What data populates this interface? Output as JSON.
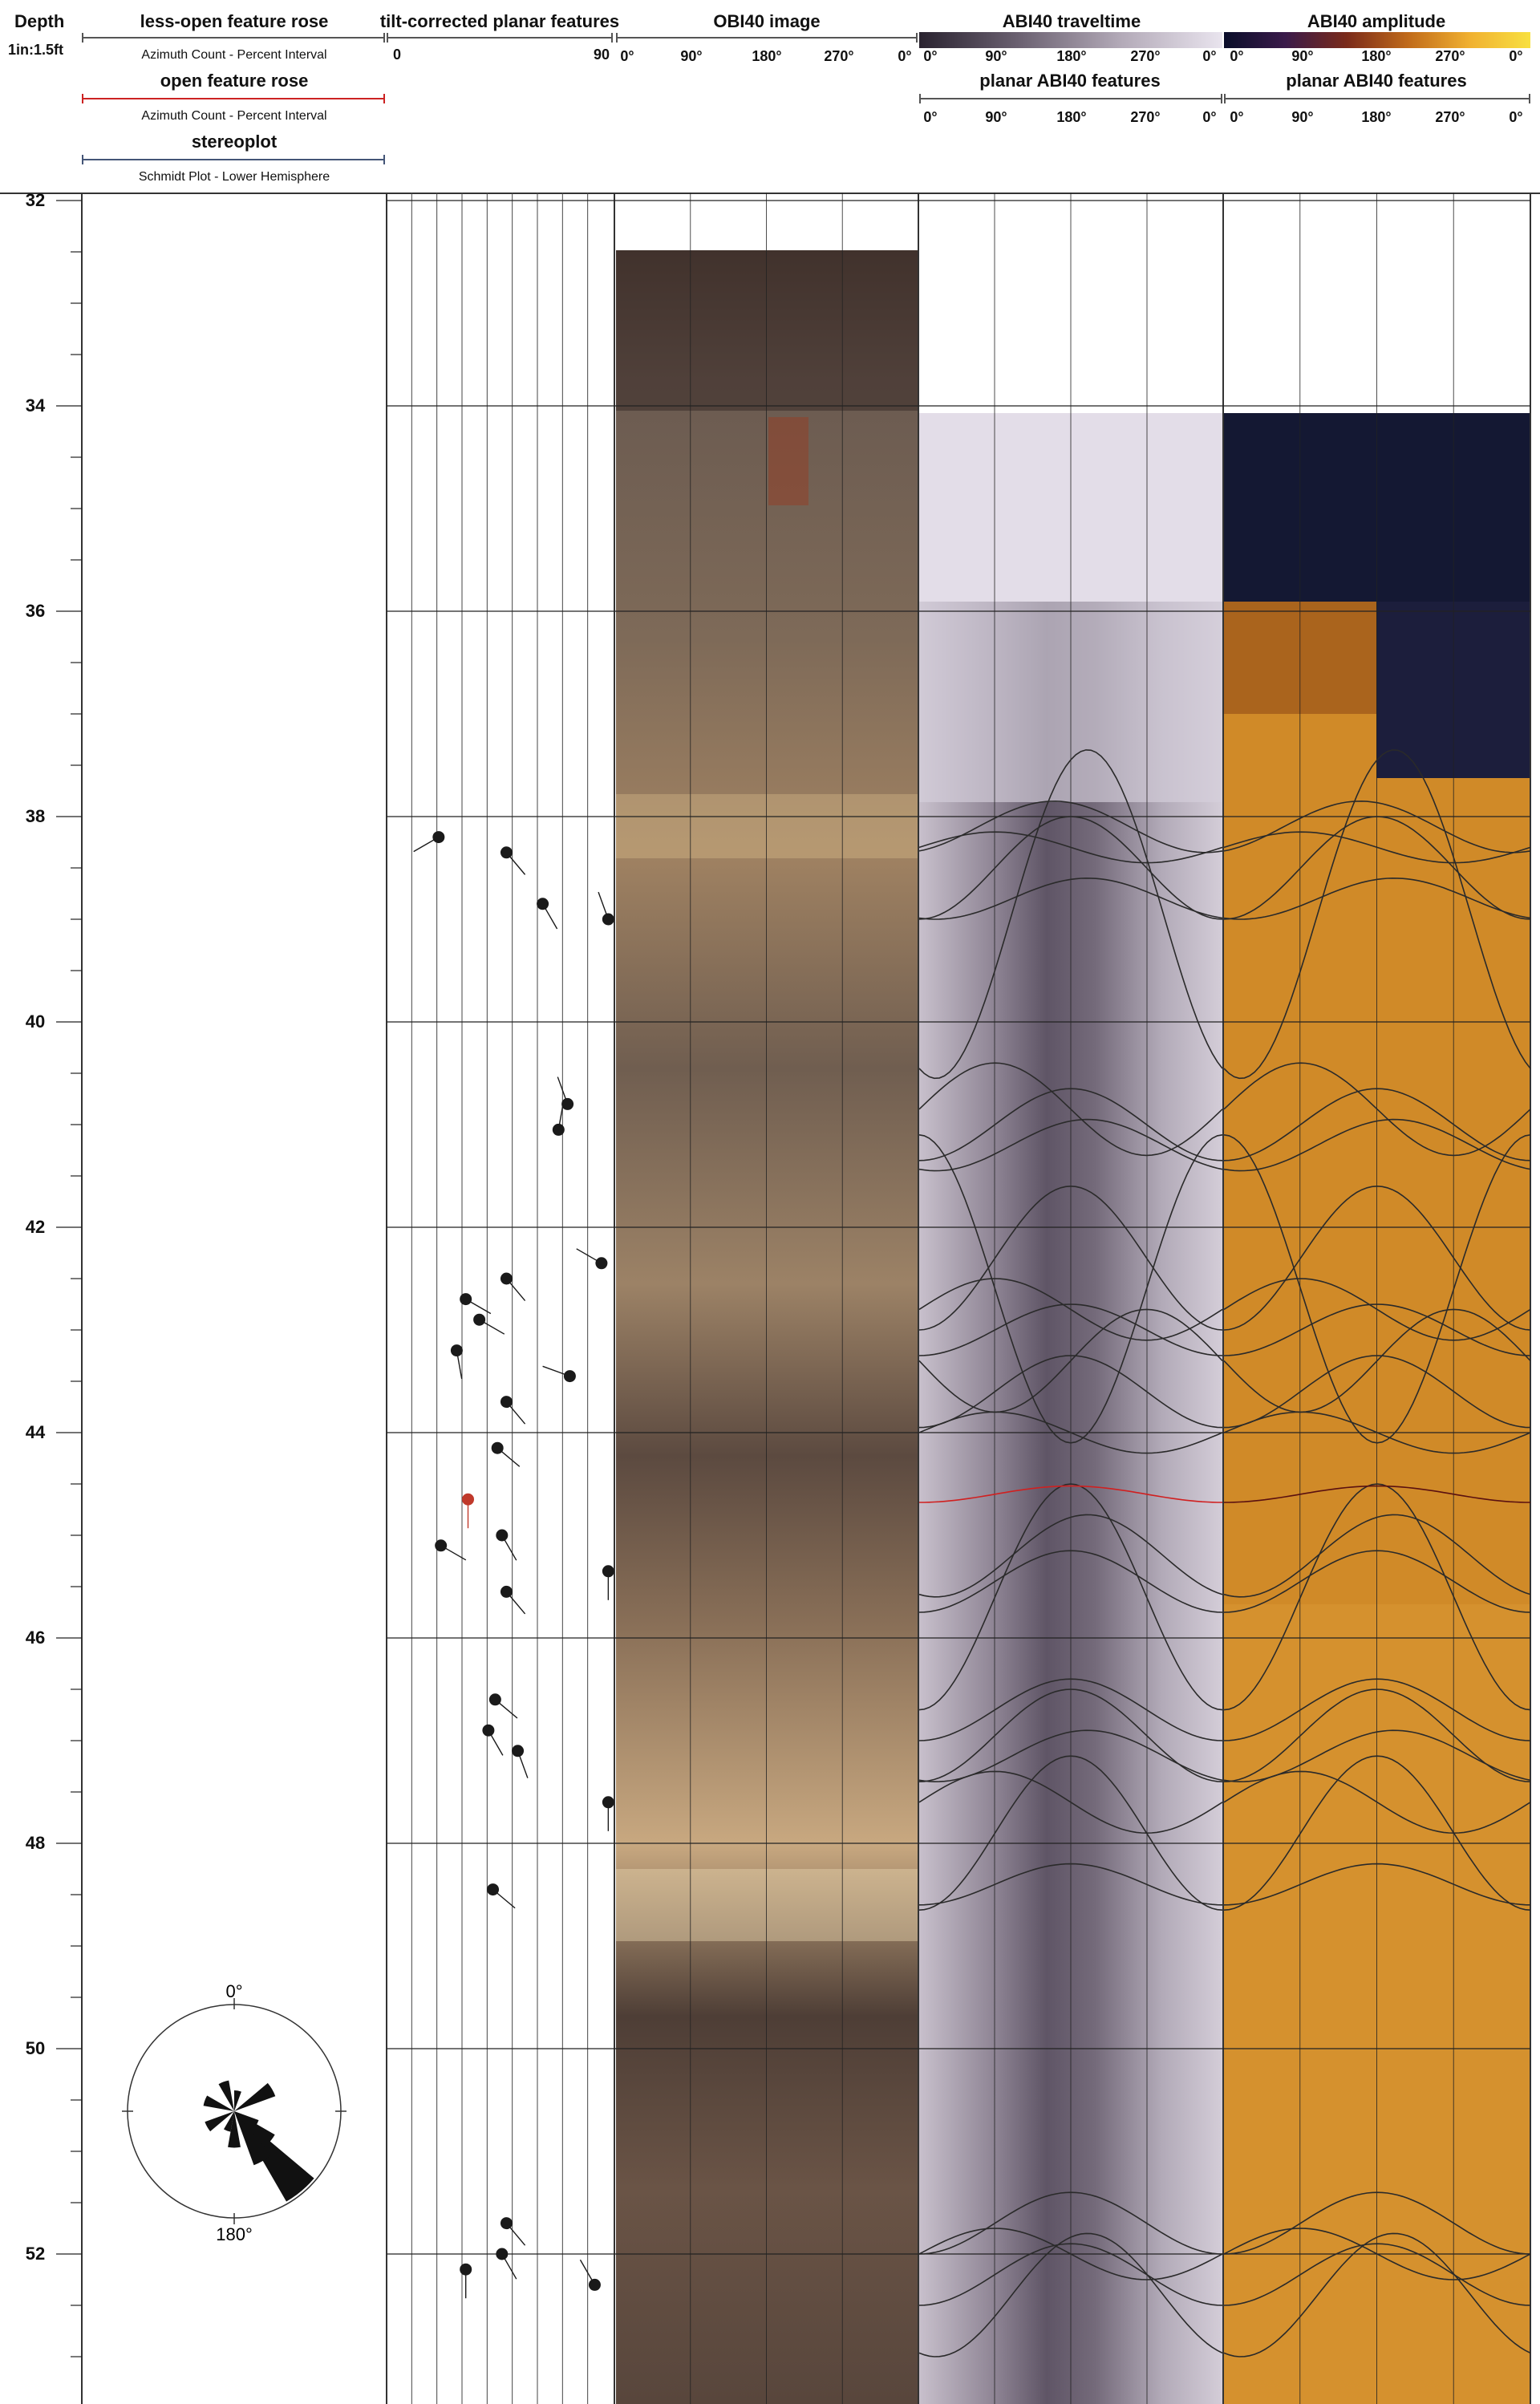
{
  "header": {
    "depth_title": "Depth",
    "depth_scale": "1in:1.5ft",
    "rose1_title": "less-open feature rose",
    "rose1_sub": "Azimuth Count - Percent Interval",
    "rose2_title": "open feature rose",
    "rose2_sub": "Azimuth Count - Percent Interval",
    "stereo_title": "stereoplot",
    "stereo_sub": "Schmidt Plot - Lower Hemisphere",
    "planar_title": "tilt-corrected planar features",
    "planar_min": "0",
    "planar_max": "90",
    "obi_title": "OBI40 image",
    "tt_title": "ABI40 traveltime",
    "amp_title": "ABI40 amplitude",
    "tt_planar_title": "planar ABI40 features",
    "amp_planar_title": "planar ABI40 features",
    "azimuth_ticks": [
      "0°",
      "90°",
      "180°",
      "270°",
      "0°"
    ]
  },
  "depths": [
    "32",
    "34",
    "36",
    "38",
    "40",
    "42",
    "44",
    "46",
    "48",
    "50",
    "52"
  ],
  "stereonet": {
    "north_label": "0°",
    "south_label": "180°"
  },
  "colors": {
    "grid": "#333333",
    "rose1_bar": "#555555",
    "rose2_bar": "#cc2222",
    "stereo_bar": "#445577",
    "tadpole": "#1a1a1a",
    "open_tadpole": "#c0392b",
    "open_sinusoid": "#d02020"
  },
  "planar_features": [
    {
      "depth": 38.2,
      "dip": 23,
      "azimuth": 240,
      "open": false
    },
    {
      "depth": 38.35,
      "dip": 53,
      "azimuth": 140,
      "open": false
    },
    {
      "depth": 38.85,
      "dip": 69,
      "azimuth": 150,
      "open": false
    },
    {
      "depth": 39.0,
      "dip": 98,
      "azimuth": 340,
      "open": false
    },
    {
      "depth": 40.8,
      "dip": 80,
      "azimuth": 340,
      "open": false
    },
    {
      "depth": 41.05,
      "dip": 76,
      "azimuth": 10,
      "open": false
    },
    {
      "depth": 42.35,
      "dip": 95,
      "azimuth": 300,
      "open": false
    },
    {
      "depth": 42.5,
      "dip": 53,
      "azimuth": 140,
      "open": false
    },
    {
      "depth": 42.7,
      "dip": 35,
      "azimuth": 120,
      "open": false
    },
    {
      "depth": 42.9,
      "dip": 41,
      "azimuth": 120,
      "open": false
    },
    {
      "depth": 43.2,
      "dip": 31,
      "azimuth": 170,
      "open": false
    },
    {
      "depth": 43.45,
      "dip": 81,
      "azimuth": 290,
      "open": false
    },
    {
      "depth": 43.7,
      "dip": 53,
      "azimuth": 140,
      "open": false
    },
    {
      "depth": 44.15,
      "dip": 49,
      "azimuth": 130,
      "open": false
    },
    {
      "depth": 44.65,
      "dip": 36,
      "azimuth": 180,
      "open": true
    },
    {
      "depth": 45.0,
      "dip": 51,
      "azimuth": 150,
      "open": false
    },
    {
      "depth": 45.1,
      "dip": 24,
      "azimuth": 120,
      "open": false
    },
    {
      "depth": 45.35,
      "dip": 98,
      "azimuth": 180,
      "open": false
    },
    {
      "depth": 45.55,
      "dip": 53,
      "azimuth": 140,
      "open": false
    },
    {
      "depth": 46.6,
      "dip": 48,
      "azimuth": 130,
      "open": false
    },
    {
      "depth": 46.9,
      "dip": 45,
      "azimuth": 150,
      "open": false
    },
    {
      "depth": 47.1,
      "dip": 58,
      "azimuth": 160,
      "open": false
    },
    {
      "depth": 47.6,
      "dip": 98,
      "azimuth": 180,
      "open": false
    },
    {
      "depth": 48.45,
      "dip": 47,
      "azimuth": 130,
      "open": false
    },
    {
      "depth": 51.7,
      "dip": 53,
      "azimuth": 140,
      "open": false
    },
    {
      "depth": 52.0,
      "dip": 51,
      "azimuth": 150,
      "open": false
    },
    {
      "depth": 52.15,
      "dip": 35,
      "azimuth": 180,
      "open": false
    },
    {
      "depth": 52.3,
      "dip": 92,
      "azimuth": 330,
      "open": false
    }
  ],
  "abi_sinusoids": [
    {
      "depth": 38.1,
      "amplitude": 0.25,
      "phase": 160
    },
    {
      "depth": 38.3,
      "amplitude": 0.15,
      "phase": 90
    },
    {
      "depth": 38.5,
      "amplitude": 0.5,
      "phase": 180
    },
    {
      "depth": 38.8,
      "amplitude": 0.2,
      "phase": 200
    },
    {
      "depth": 38.95,
      "amplitude": 1.6,
      "phase": 200
    },
    {
      "depth": 40.85,
      "amplitude": 0.45,
      "phase": 90
    },
    {
      "depth": 41.0,
      "amplitude": 0.35,
      "phase": 180
    },
    {
      "depth": 41.2,
      "amplitude": 0.25,
      "phase": 200
    },
    {
      "depth": 42.3,
      "amplitude": 0.7,
      "phase": 180
    },
    {
      "depth": 42.6,
      "amplitude": 1.5,
      "phase": 0
    },
    {
      "depth": 42.8,
      "amplitude": 0.3,
      "phase": 90
    },
    {
      "depth": 43.0,
      "amplitude": 0.25,
      "phase": 180
    },
    {
      "depth": 43.3,
      "amplitude": 0.5,
      "phase": 270
    },
    {
      "depth": 43.6,
      "amplitude": 0.35,
      "phase": 180
    },
    {
      "depth": 44.0,
      "amplitude": 0.2,
      "phase": 90
    },
    {
      "depth": 45.2,
      "amplitude": 0.4,
      "phase": 200
    },
    {
      "depth": 45.45,
      "amplitude": 0.3,
      "phase": 180
    },
    {
      "depth": 45.6,
      "amplitude": 1.1,
      "phase": 180
    },
    {
      "depth": 46.7,
      "amplitude": 0.3,
      "phase": 180
    },
    {
      "depth": 46.95,
      "amplitude": 0.45,
      "phase": 180
    },
    {
      "depth": 47.15,
      "amplitude": 0.25,
      "phase": 200
    },
    {
      "depth": 47.6,
      "amplitude": 0.3,
      "phase": 90
    },
    {
      "depth": 47.9,
      "amplitude": 0.75,
      "phase": 180
    },
    {
      "depth": 48.4,
      "amplitude": 0.2,
      "phase": 180
    },
    {
      "depth": 51.7,
      "amplitude": 0.3,
      "phase": 180
    },
    {
      "depth": 52.0,
      "amplitude": 0.25,
      "phase": 90
    },
    {
      "depth": 52.2,
      "amplitude": 0.3,
      "phase": 180
    },
    {
      "depth": 52.4,
      "amplitude": 0.6,
      "phase": 200
    }
  ],
  "open_sinusoid": {
    "depth": 44.6,
    "amplitude": 0.08,
    "phase": 180
  },
  "rose_petals": [
    {
      "azimuth": 140,
      "length": 1.0
    },
    {
      "azimuth": 150,
      "length": 0.55
    },
    {
      "azimuth": 130,
      "length": 0.45
    },
    {
      "azimuth": 290,
      "length": 0.3
    },
    {
      "azimuth": 340,
      "length": 0.3
    },
    {
      "azimuth": 180,
      "length": 0.35
    },
    {
      "azimuth": 120,
      "length": 0.25
    },
    {
      "azimuth": 60,
      "length": 0.42
    },
    {
      "azimuth": 240,
      "length": 0.3
    },
    {
      "azimuth": 200,
      "length": 0.2
    },
    {
      "azimuth": 10,
      "length": 0.2
    }
  ]
}
